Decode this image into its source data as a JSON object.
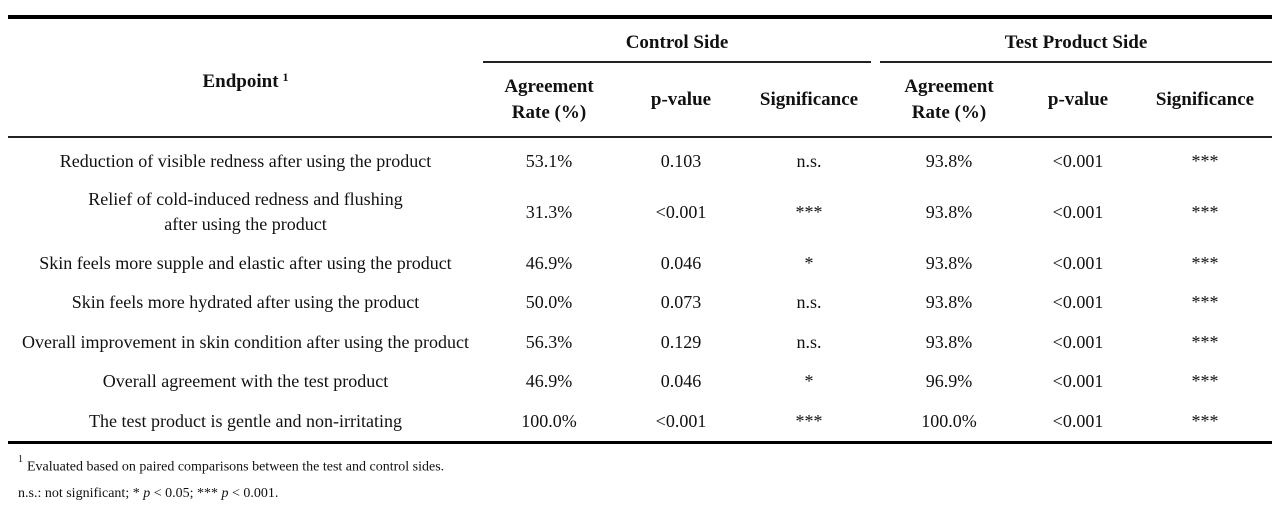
{
  "header": {
    "endpoint_label": "Endpoint",
    "endpoint_footnote_marker": "1",
    "control_group": "Control Side",
    "test_group": "Test Product Side",
    "agreement_rate_line1": "Agreement",
    "agreement_rate_line2": "Rate (%)",
    "p_value": "p-value",
    "significance": "Significance"
  },
  "rows": [
    {
      "endpoint": "Reduction of visible redness after using the product",
      "control_rate": "53.1%",
      "control_p": "0.103",
      "control_sig": "n.s.",
      "test_rate": "93.8%",
      "test_p": "<0.001",
      "test_sig": "***"
    },
    {
      "endpoint_line1": "Relief of cold-induced redness and flushing",
      "endpoint_line2": "after using the product",
      "control_rate": "31.3%",
      "control_p": "<0.001",
      "control_sig": "***",
      "test_rate": "93.8%",
      "test_p": "<0.001",
      "test_sig": "***"
    },
    {
      "endpoint": "Skin feels more supple and elastic after using the product",
      "control_rate": "46.9%",
      "control_p": "0.046",
      "control_sig": "*",
      "test_rate": "93.8%",
      "test_p": "<0.001",
      "test_sig": "***"
    },
    {
      "endpoint": "Skin feels more hydrated after using the product",
      "control_rate": "50.0%",
      "control_p": "0.073",
      "control_sig": "n.s.",
      "test_rate": "93.8%",
      "test_p": "<0.001",
      "test_sig": "***"
    },
    {
      "endpoint": "Overall improvement in skin condition after using the product",
      "control_rate": "56.3%",
      "control_p": "0.129",
      "control_sig": "n.s.",
      "test_rate": "93.8%",
      "test_p": "<0.001",
      "test_sig": "***"
    },
    {
      "endpoint": "Overall agreement with the test product",
      "control_rate": "46.9%",
      "control_p": "0.046",
      "control_sig": "*",
      "test_rate": "96.9%",
      "test_p": "<0.001",
      "test_sig": "***"
    },
    {
      "endpoint": "The test product is gentle and non-irritating",
      "control_rate": "100.0%",
      "control_p": "<0.001",
      "control_sig": "***",
      "test_rate": "100.0%",
      "test_p": "<0.001",
      "test_sig": "***"
    }
  ],
  "footnotes": {
    "fn1_marker": "1",
    "fn1_text": "Evaluated based on paired comparisons between the test and control sides.",
    "fn2_part1": "n.s.: not significant; * ",
    "fn2_p1": "p",
    "fn2_part2": " < 0.05; *** ",
    "fn2_p2": "p",
    "fn2_part3": " < 0.001."
  }
}
